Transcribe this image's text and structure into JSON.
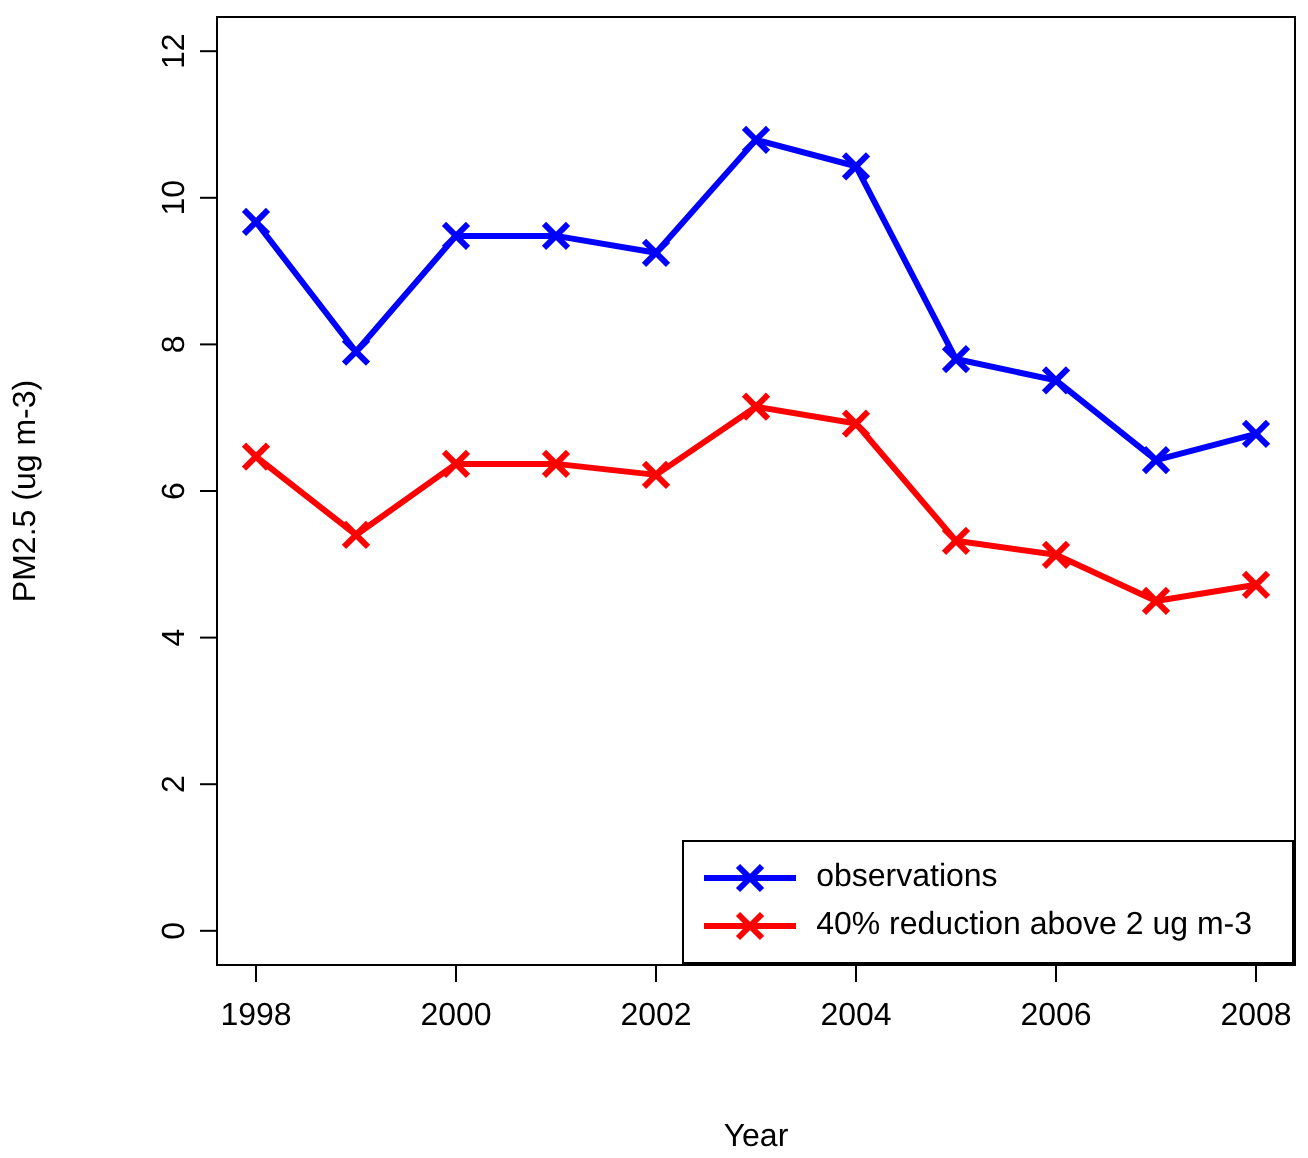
{
  "chart_data": {
    "type": "line",
    "xlabel": "Year",
    "ylabel": "PM2.5 (ug m-3)",
    "x": [
      1998,
      1999,
      2000,
      2001,
      2002,
      2003,
      2004,
      2005,
      2006,
      2007,
      2008
    ],
    "series": [
      {
        "name": "observations",
        "color": "#0000ff",
        "marker": "cross",
        "values": [
          9.67,
          7.9,
          9.48,
          9.48,
          9.25,
          10.79,
          10.43,
          7.8,
          7.51,
          6.42,
          6.78
        ]
      },
      {
        "name": "40% reduction above 2 ug m-3",
        "color": "#ff0000",
        "marker": "cross",
        "values": [
          6.47,
          5.4,
          6.37,
          6.37,
          6.22,
          7.15,
          6.92,
          5.32,
          5.13,
          4.5,
          4.72
        ]
      }
    ],
    "xlim": [
      1997.6,
      2008.4
    ],
    "xticks": [
      1998,
      2000,
      2002,
      2004,
      2006,
      2008
    ],
    "ylim": [
      -0.48,
      12.48
    ],
    "yticks": [
      0,
      2,
      4,
      6,
      8,
      10,
      12
    ],
    "grid": false,
    "legend": "bottom right",
    "line_style": "solid"
  }
}
